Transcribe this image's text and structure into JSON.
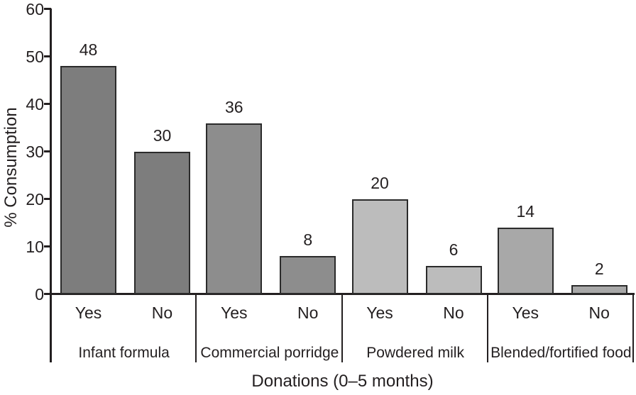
{
  "chart_data": {
    "type": "bar",
    "title": "",
    "xlabel": "Donations (0–5 months)",
    "ylabel": "% Consumption",
    "ylim": [
      0,
      60
    ],
    "yticks": [
      0,
      10,
      20,
      30,
      40,
      50,
      60
    ],
    "grid": false,
    "legend": false,
    "axis_color": "#231f20",
    "bar_border_color": "#2b2b2b",
    "bar_labels": [
      "Yes",
      "No"
    ],
    "groups": [
      {
        "category": "Infant formula",
        "color": "#7d7d7d",
        "bars": [
          {
            "label": "Yes",
            "value": 48
          },
          {
            "label": "No",
            "value": 30
          }
        ]
      },
      {
        "category": "Commercial porridge",
        "color": "#8d8d8d",
        "bars": [
          {
            "label": "Yes",
            "value": 36
          },
          {
            "label": "No",
            "value": 8
          }
        ]
      },
      {
        "category": "Powdered milk",
        "color": "#bcbcbc",
        "bars": [
          {
            "label": "Yes",
            "value": 20
          },
          {
            "label": "No",
            "value": 6
          }
        ]
      },
      {
        "category": "Blended/fortified food",
        "color": "#a8a8a8",
        "bars": [
          {
            "label": "Yes",
            "value": 14
          },
          {
            "label": "No",
            "value": 2
          }
        ]
      }
    ]
  }
}
